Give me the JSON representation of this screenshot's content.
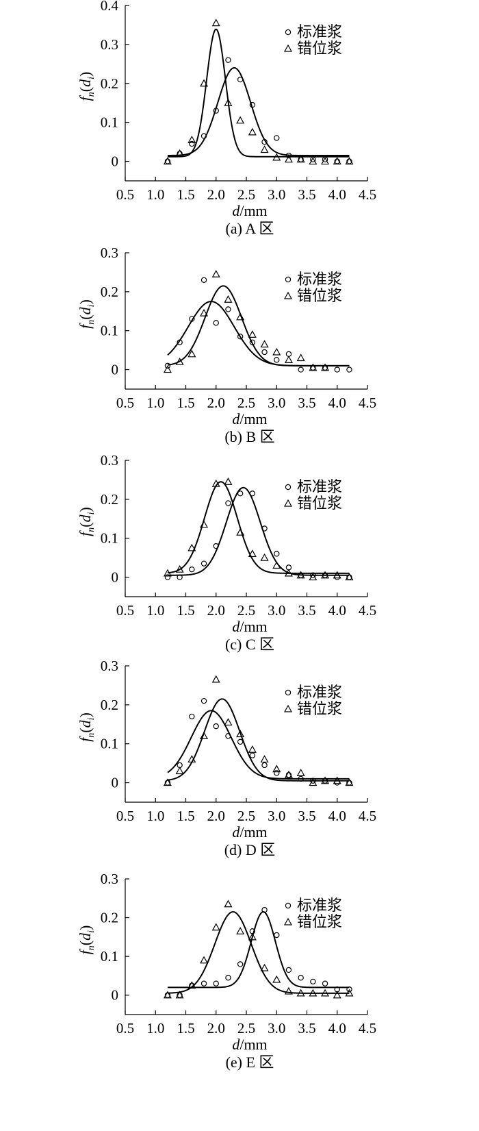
{
  "chart_data": [
    {
      "type": "scatter",
      "panel_label": "(a) A 区",
      "xlabel_italic": "d",
      "xlabel_rest": "/mm",
      "ylabel_f": "f",
      "ylabel_sub": "n",
      "ylabel_arg": "d",
      "ylabel_arg_sub": "i",
      "xlim": [
        0.5,
        4.5
      ],
      "ylim": [
        -0.05,
        0.4
      ],
      "xticks": [
        "0.5",
        "1.0",
        "1.5",
        "2.0",
        "2.5",
        "3.0",
        "3.5",
        "4.0",
        "4.5"
      ],
      "yticks": [
        "0",
        "0.1",
        "0.2",
        "0.3",
        "0.4"
      ],
      "legend_position": "top-right",
      "series": [
        {
          "name": "标准浆",
          "marker": "circle",
          "x": [
            1.2,
            1.4,
            1.6,
            1.8,
            2.0,
            2.2,
            2.4,
            2.6,
            2.8,
            3.0,
            3.2,
            3.4,
            3.6,
            3.8,
            4.0,
            4.2
          ],
          "y": [
            0.0,
            0.02,
            0.045,
            0.065,
            0.13,
            0.26,
            0.21,
            0.145,
            0.05,
            0.06,
            0.015,
            0.005,
            0.005,
            0.005,
            0.0,
            0.0
          ],
          "fit": {
            "base": 0.015,
            "amp": 0.225,
            "mu": 2.3,
            "sigma": 0.27
          }
        },
        {
          "name": "错位浆",
          "marker": "triangle",
          "x": [
            1.2,
            1.4,
            1.6,
            1.8,
            2.0,
            2.2,
            2.4,
            2.6,
            2.8,
            3.0,
            3.2,
            3.4,
            3.6,
            3.8,
            4.0,
            4.2
          ],
          "y": [
            0.0,
            0.02,
            0.055,
            0.2,
            0.355,
            0.15,
            0.105,
            0.075,
            0.03,
            0.01,
            0.005,
            0.005,
            0.0,
            0.0,
            0.0,
            0.0
          ],
          "fit": {
            "base": 0.012,
            "amp": 0.327,
            "mu": 2.0,
            "sigma": 0.155
          }
        }
      ]
    },
    {
      "type": "scatter",
      "panel_label": "(b) B 区",
      "xlabel_italic": "d",
      "xlabel_rest": "/mm",
      "ylabel_f": "f",
      "ylabel_sub": "n",
      "ylabel_arg": "d",
      "ylabel_arg_sub": "i",
      "xlim": [
        0.5,
        4.5
      ],
      "ylim": [
        -0.05,
        0.3
      ],
      "xticks": [
        "0.5",
        "1.0",
        "1.5",
        "2.0",
        "2.5",
        "3.0",
        "3.5",
        "4.0",
        "4.5"
      ],
      "yticks": [
        "0",
        "0.1",
        "0.2",
        "0.3"
      ],
      "legend_position": "top-right",
      "series": [
        {
          "name": "标准浆",
          "marker": "circle",
          "x": [
            1.2,
            1.4,
            1.6,
            1.8,
            2.0,
            2.2,
            2.4,
            2.6,
            2.8,
            3.0,
            3.2,
            3.4,
            3.6,
            3.8,
            4.0,
            4.2
          ],
          "y": [
            0.01,
            0.07,
            0.13,
            0.23,
            0.12,
            0.155,
            0.085,
            0.07,
            0.045,
            0.025,
            0.04,
            0.0,
            0.005,
            0.005,
            0.0,
            0.0
          ],
          "fit": {
            "base": 0.01,
            "amp": 0.165,
            "mu": 1.92,
            "sigma": 0.38
          }
        },
        {
          "name": "错位浆",
          "marker": "triangle",
          "x": [
            1.2,
            1.4,
            1.6,
            1.8,
            2.0,
            2.2,
            2.4,
            2.6,
            2.8,
            3.0,
            3.2,
            3.4,
            3.6,
            3.8
          ],
          "y": [
            0.0,
            0.02,
            0.04,
            0.145,
            0.245,
            0.18,
            0.135,
            0.09,
            0.065,
            0.045,
            0.025,
            0.03,
            0.005,
            0.005
          ],
          "fit": {
            "base": 0.01,
            "amp": 0.205,
            "mu": 2.12,
            "sigma": 0.3
          }
        }
      ]
    },
    {
      "type": "scatter",
      "panel_label": "(c) C 区",
      "xlabel_italic": "d",
      "xlabel_rest": "/mm",
      "ylabel_f": "f",
      "ylabel_sub": "n",
      "ylabel_arg": "d",
      "ylabel_arg_sub": "i",
      "xlim": [
        0.5,
        4.5
      ],
      "ylim": [
        -0.05,
        0.3
      ],
      "xticks": [
        "0.5",
        "1.0",
        "1.5",
        "2.0",
        "2.5",
        "3.0",
        "3.5",
        "4.0",
        "4.5"
      ],
      "yticks": [
        "0",
        "0.1",
        "0.2",
        "0.3"
      ],
      "legend_position": "top-right",
      "series": [
        {
          "name": "标准浆",
          "marker": "circle",
          "x": [
            1.2,
            1.4,
            1.6,
            1.8,
            2.0,
            2.2,
            2.4,
            2.6,
            2.8,
            3.0,
            3.2,
            3.4,
            3.6,
            3.8,
            4.0,
            4.2
          ],
          "y": [
            0.0,
            0.0,
            0.02,
            0.035,
            0.08,
            0.19,
            0.215,
            0.215,
            0.125,
            0.06,
            0.025,
            0.005,
            0.005,
            0.005,
            0.0,
            0.0
          ],
          "fit": {
            "base": 0.005,
            "amp": 0.225,
            "mu": 2.45,
            "sigma": 0.28
          }
        },
        {
          "name": "错位浆",
          "marker": "triangle",
          "x": [
            1.2,
            1.4,
            1.6,
            1.8,
            2.0,
            2.2,
            2.4,
            2.6,
            2.8,
            3.0,
            3.2,
            3.4,
            3.6,
            3.8,
            4.0,
            4.2
          ],
          "y": [
            0.01,
            0.02,
            0.075,
            0.135,
            0.24,
            0.245,
            0.115,
            0.06,
            0.05,
            0.03,
            0.01,
            0.005,
            0.0,
            0.005,
            0.005,
            0.0
          ],
          "fit": {
            "base": 0.01,
            "amp": 0.235,
            "mu": 2.08,
            "sigma": 0.27
          }
        }
      ]
    },
    {
      "type": "scatter",
      "panel_label": "(d) D 区",
      "xlabel_italic": "d",
      "xlabel_rest": "/mm",
      "ylabel_f": "f",
      "ylabel_sub": "n",
      "ylabel_arg": "d",
      "ylabel_arg_sub": "i",
      "xlim": [
        0.5,
        4.5
      ],
      "ylim": [
        -0.05,
        0.3
      ],
      "xticks": [
        "0.5",
        "1.0",
        "1.5",
        "2.0",
        "2.5",
        "3.0",
        "3.5",
        "4.0",
        "4.5"
      ],
      "yticks": [
        "0",
        "0.1",
        "0.2",
        "0.3"
      ],
      "legend_position": "top-right",
      "series": [
        {
          "name": "标准浆",
          "marker": "circle",
          "x": [
            1.2,
            1.4,
            1.6,
            1.8,
            2.0,
            2.2,
            2.4,
            2.6,
            2.8,
            3.0,
            3.2,
            3.4,
            3.6,
            3.8,
            4.0,
            4.2
          ],
          "y": [
            0.0,
            0.045,
            0.17,
            0.21,
            0.145,
            0.12,
            0.105,
            0.07,
            0.045,
            0.025,
            0.02,
            0.01,
            0.005,
            0.005,
            0.0,
            0.0
          ],
          "fit": {
            "base": 0.01,
            "amp": 0.175,
            "mu": 1.92,
            "sigma": 0.33
          }
        },
        {
          "name": "错位浆",
          "marker": "triangle",
          "x": [
            1.2,
            1.4,
            1.6,
            1.8,
            2.0,
            2.2,
            2.4,
            2.6,
            2.8,
            3.0,
            3.2,
            3.4,
            3.6,
            3.8,
            4.0,
            4.2
          ],
          "y": [
            0.0,
            0.03,
            0.06,
            0.12,
            0.265,
            0.155,
            0.125,
            0.085,
            0.06,
            0.035,
            0.02,
            0.025,
            0.0,
            0.005,
            0.005,
            0.0
          ],
          "fit": {
            "base": 0.005,
            "amp": 0.21,
            "mu": 2.1,
            "sigma": 0.29
          }
        }
      ]
    },
    {
      "type": "scatter",
      "panel_label": "(e) E 区",
      "xlabel_italic": "d",
      "xlabel_rest": "/mm",
      "ylabel_f": "f",
      "ylabel_sub": "n",
      "ylabel_arg": "d",
      "ylabel_arg_sub": "i",
      "xlim": [
        0.5,
        4.5
      ],
      "ylim": [
        -0.05,
        0.3
      ],
      "xticks": [
        "0.5",
        "1.0",
        "1.5",
        "2.0",
        "2.5",
        "3.0",
        "3.5",
        "4.0",
        "4.5"
      ],
      "yticks": [
        "0",
        "0.1",
        "0.2",
        "0.3"
      ],
      "legend_position": "top-right",
      "series": [
        {
          "name": "标准浆",
          "marker": "circle",
          "x": [
            1.2,
            1.4,
            1.6,
            1.8,
            2.0,
            2.2,
            2.4,
            2.6,
            2.8,
            3.0,
            3.2,
            3.4,
            3.6,
            3.8,
            4.0,
            4.2
          ],
          "y": [
            0.0,
            0.0,
            0.025,
            0.03,
            0.03,
            0.045,
            0.08,
            0.165,
            0.22,
            0.155,
            0.065,
            0.045,
            0.035,
            0.03,
            0.015,
            0.015
          ],
          "fit": {
            "base": 0.02,
            "amp": 0.195,
            "mu": 2.78,
            "sigma": 0.2
          }
        },
        {
          "name": "错位浆",
          "marker": "triangle",
          "x": [
            1.2,
            1.4,
            1.6,
            1.8,
            2.0,
            2.2,
            2.4,
            2.6,
            2.8,
            3.0,
            3.2,
            3.4,
            3.6,
            3.8,
            4.0,
            4.2
          ],
          "y": [
            0.0,
            0.0,
            0.025,
            0.09,
            0.175,
            0.235,
            0.165,
            0.15,
            0.07,
            0.04,
            0.01,
            0.005,
            0.005,
            0.005,
            0.0,
            0.005
          ],
          "fit": {
            "base": 0.005,
            "amp": 0.21,
            "mu": 2.28,
            "sigma": 0.3
          }
        }
      ]
    }
  ]
}
